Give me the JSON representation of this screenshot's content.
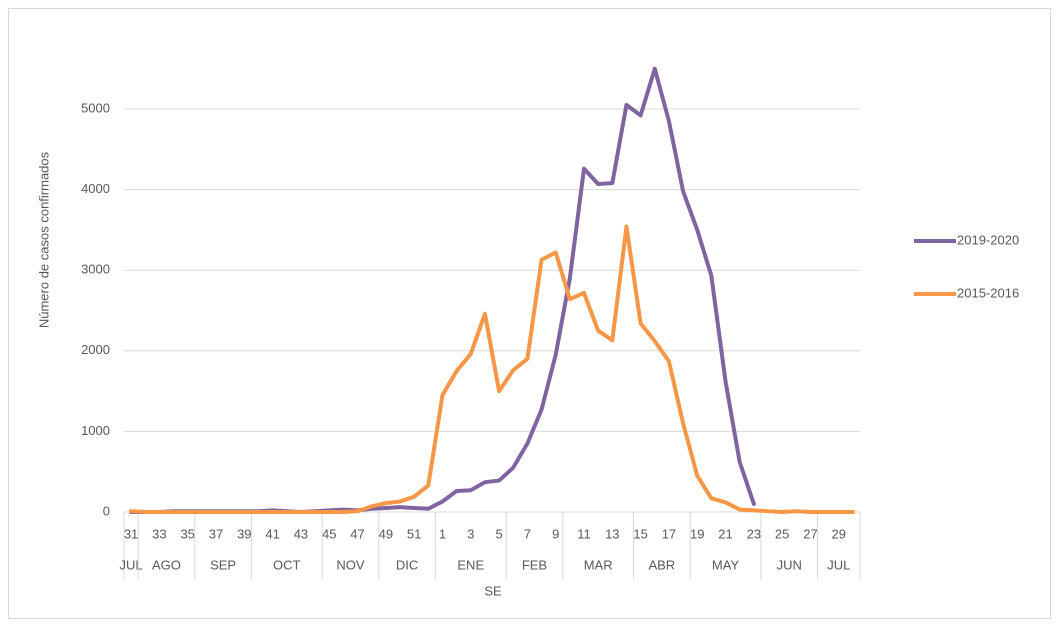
{
  "chart_data": {
    "type": "line",
    "y_label": "Número de casos confirmados",
    "x_label": "SE",
    "categories": [
      "31",
      null,
      "33",
      null,
      "35",
      null,
      "37",
      null,
      "39",
      null,
      "41",
      null,
      "43",
      null,
      "45",
      null,
      "47",
      null,
      "49",
      null,
      "51",
      null,
      "1",
      null,
      "3",
      null,
      "5",
      null,
      "7",
      null,
      "9",
      null,
      "11",
      null,
      "13",
      null,
      "15",
      null,
      "17",
      null,
      "19",
      null,
      "21",
      null,
      "23",
      null,
      "25",
      null,
      "27",
      null,
      "29",
      null
    ],
    "months": [
      "JUL",
      "AGO",
      "AGO",
      "AGO",
      "AGO",
      "SEP",
      "SEP",
      "SEP",
      "SEP",
      "OCT",
      "OCT",
      "OCT",
      "OCT",
      "OCT",
      "NOV",
      "NOV",
      "NOV",
      "NOV",
      "DIC",
      "DIC",
      "DIC",
      "DIC",
      "ENE",
      "ENE",
      "ENE",
      "ENE",
      "ENE",
      "FEB",
      "FEB",
      "FEB",
      "FEB",
      "MAR",
      "MAR",
      "MAR",
      "MAR",
      "MAR",
      "ABR",
      "ABR",
      "ABR",
      "ABR",
      "MAY",
      "MAY",
      "MAY",
      "MAY",
      "MAY",
      "JUN",
      "JUN",
      "JUN",
      "JUN",
      "JUL",
      "JUL",
      "JUL"
    ],
    "series": [
      {
        "name": "2019-2020",
        "color": "#8064a2",
        "values": [
          0,
          0,
          0,
          10,
          10,
          10,
          10,
          10,
          10,
          10,
          20,
          10,
          0,
          10,
          20,
          30,
          20,
          40,
          50,
          60,
          50,
          40,
          130,
          260,
          270,
          370,
          390,
          550,
          850,
          1270,
          1950,
          2900,
          4260,
          4070,
          4080,
          5050,
          4920,
          5500,
          4850,
          3980,
          3500,
          2930,
          1620,
          620,
          100,
          null,
          null,
          null,
          null,
          null,
          null,
          null
        ]
      },
      {
        "name": "2015-2016",
        "color": "#f79646",
        "values": [
          10,
          0,
          0,
          0,
          0,
          0,
          0,
          0,
          0,
          0,
          0,
          0,
          0,
          0,
          0,
          0,
          10,
          70,
          110,
          130,
          190,
          330,
          1450,
          1750,
          1960,
          2460,
          1500,
          1760,
          1900,
          3130,
          3220,
          2640,
          2720,
          2250,
          2130,
          3540,
          2340,
          2120,
          1870,
          1100,
          450,
          170,
          120,
          30,
          20,
          10,
          0,
          10,
          0,
          0,
          0,
          0
        ]
      }
    ],
    "ylim": [
      0,
      5500
    ],
    "yticks": [
      0,
      1000,
      2000,
      3000,
      4000,
      5000
    ],
    "grid": true,
    "legend": "right"
  }
}
